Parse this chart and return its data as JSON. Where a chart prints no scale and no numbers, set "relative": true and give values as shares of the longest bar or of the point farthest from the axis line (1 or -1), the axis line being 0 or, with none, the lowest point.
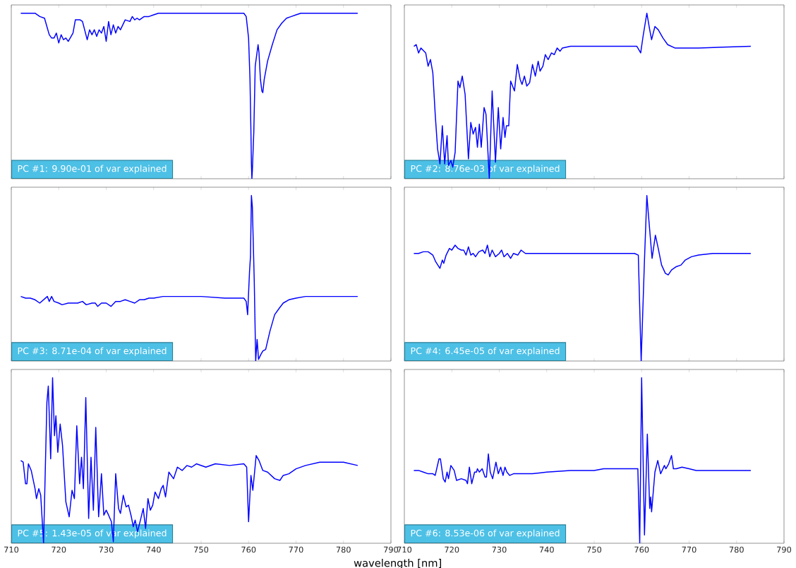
{
  "chart_data": [
    {
      "type": "line",
      "relative": true,
      "xlim": [
        710,
        790
      ],
      "xticks": [
        710,
        720,
        730,
        740,
        750,
        760,
        770,
        780,
        790
      ],
      "tick_labels": false,
      "annotations": [
        "PC #1: 9.90e-01 of var explained"
      ],
      "series": [
        {
          "color": "#0000ff",
          "x": [
            712,
            713,
            714,
            715,
            715.5,
            716,
            717,
            717.5,
            718,
            718.5,
            719,
            719.5,
            720,
            720.5,
            721,
            721.5,
            722,
            723,
            723.5,
            724,
            724.5,
            725,
            726,
            726.5,
            727,
            727.5,
            728,
            728.5,
            729,
            729.5,
            730,
            730.5,
            731,
            731.5,
            732,
            732.5,
            733,
            734,
            735,
            735.5,
            736,
            736.5,
            737,
            738,
            739,
            740,
            741,
            742,
            744,
            750,
            755,
            759,
            759.5,
            760,
            760.3,
            760.5,
            760.6,
            760.7,
            760.8,
            761.1,
            761.4,
            762,
            762.2,
            762.5,
            762.8,
            763,
            763.3,
            764,
            765,
            766,
            767,
            768,
            769,
            770,
            771,
            772,
            775,
            783
          ],
          "values": [
            1.0,
            1.0,
            1.0,
            1.0,
            0.99,
            0.98,
            0.97,
            0.92,
            0.87,
            0.85,
            0.85,
            0.88,
            0.82,
            0.87,
            0.84,
            0.85,
            0.83,
            0.88,
            0.96,
            0.96,
            0.96,
            0.95,
            0.84,
            0.9,
            0.87,
            0.9,
            0.86,
            0.9,
            0.88,
            0.92,
            0.83,
            0.95,
            0.87,
            0.93,
            0.88,
            0.92,
            0.9,
            0.96,
            0.95,
            0.98,
            0.96,
            0.97,
            0.96,
            0.98,
            0.98,
            0.99,
            1.0,
            1.0,
            1.0,
            1.0,
            1.0,
            1.0,
            0.98,
            0.85,
            0.6,
            0.28,
            0.09,
            0.0,
            0.05,
            0.28,
            0.68,
            0.81,
            0.76,
            0.6,
            0.53,
            0.52,
            0.6,
            0.71,
            0.81,
            0.9,
            0.94,
            0.97,
            0.98,
            0.99,
            1.0,
            1.0,
            1.0,
            1.0
          ]
        }
      ]
    },
    {
      "type": "line",
      "relative": true,
      "xlim": [
        710,
        790
      ],
      "xticks": [
        710,
        720,
        730,
        740,
        750,
        760,
        770,
        780,
        790
      ],
      "tick_labels": false,
      "annotations": [
        "PC #2: 8.76e-03 of var explained"
      ],
      "series": [
        {
          "color": "#0000ff",
          "x": [
            712,
            712.5,
            713,
            713.5,
            714.5,
            715,
            715.5,
            716,
            716.5,
            717,
            717.5,
            718,
            718.5,
            719,
            719.3,
            719.8,
            720.2,
            720.7,
            721.3,
            721.7,
            722.2,
            722.8,
            723.5,
            724,
            724.5,
            725,
            725.4,
            725.8,
            726.2,
            726.8,
            727.2,
            727.9,
            728.5,
            729.2,
            729.8,
            730.3,
            730.8,
            731.2,
            731.5,
            732,
            732.4,
            732.8,
            733.2,
            733.8,
            734.4,
            734.8,
            735.3,
            735.8,
            736.4,
            737,
            737.6,
            738.2,
            738.6,
            739.2,
            739.7,
            740.3,
            741,
            741.6,
            742.2,
            742.8,
            743.3,
            745,
            750,
            759,
            759.8,
            760.3,
            761.1,
            761.7,
            762.1,
            762.8,
            763.5,
            764.5,
            765.5,
            767,
            769,
            772,
            783
          ],
          "values": [
            0.8,
            0.81,
            0.76,
            0.79,
            0.76,
            0.68,
            0.72,
            0.64,
            0.39,
            0.18,
            0.09,
            0.32,
            0.09,
            0.26,
            0.08,
            0.11,
            0.07,
            0.16,
            0.59,
            0.55,
            0.62,
            0.51,
            0.12,
            0.34,
            0.27,
            0.31,
            0.19,
            0.33,
            0.19,
            0.43,
            0.39,
            0.0,
            0.53,
            0.1,
            0.43,
            0.18,
            0.37,
            0.25,
            0.32,
            0.32,
            0.59,
            0.56,
            0.53,
            0.69,
            0.6,
            0.57,
            0.62,
            0.56,
            0.58,
            0.69,
            0.62,
            0.71,
            0.65,
            0.68,
            0.75,
            0.72,
            0.76,
            0.75,
            0.79,
            0.77,
            0.79,
            0.8,
            0.8,
            0.8,
            0.76,
            0.86,
            1.0,
            0.9,
            0.84,
            0.92,
            0.9,
            0.85,
            0.81,
            0.79,
            0.79,
            0.79,
            0.8
          ]
        }
      ]
    },
    {
      "type": "line",
      "relative": true,
      "xlim": [
        710,
        790
      ],
      "xticks": [
        710,
        720,
        730,
        740,
        750,
        760,
        770,
        780,
        790
      ],
      "tick_labels": false,
      "annotations": [
        "PC #3: 8.71e-04 of var explained"
      ],
      "series": [
        {
          "color": "#0000ff",
          "x": [
            712,
            713,
            713.5,
            714,
            715,
            716,
            717.6,
            718,
            718.5,
            719,
            720,
            720.7,
            722,
            723,
            724,
            725,
            725.8,
            727,
            727.7,
            728.2,
            729,
            730,
            731,
            732,
            733,
            734,
            735,
            736,
            737,
            738,
            739,
            740,
            742,
            745,
            750,
            755,
            758,
            759,
            759.5,
            759.8,
            760.2,
            760.4,
            760.6,
            760.8,
            761.2,
            761.5,
            761.8,
            762.1,
            762.6,
            763,
            763.6,
            764.5,
            765.5,
            766.5,
            767.3,
            768.5,
            770,
            772,
            783
          ],
          "values": [
            0.39,
            0.38,
            0.38,
            0.38,
            0.37,
            0.35,
            0.39,
            0.36,
            0.39,
            0.36,
            0.35,
            0.34,
            0.35,
            0.35,
            0.35,
            0.36,
            0.34,
            0.35,
            0.35,
            0.33,
            0.35,
            0.35,
            0.33,
            0.36,
            0.36,
            0.37,
            0.36,
            0.35,
            0.37,
            0.37,
            0.38,
            0.38,
            0.39,
            0.39,
            0.39,
            0.38,
            0.38,
            0.38,
            0.36,
            0.28,
            0.54,
            0.63,
            1.0,
            0.93,
            0.48,
            0.0,
            0.13,
            0.01,
            0.04,
            0.06,
            0.07,
            0.18,
            0.28,
            0.32,
            0.35,
            0.37,
            0.38,
            0.39,
            0.39
          ]
        }
      ]
    },
    {
      "type": "line",
      "relative": true,
      "xlim": [
        710,
        790
      ],
      "xticks": [
        710,
        720,
        730,
        740,
        750,
        760,
        770,
        780,
        790
      ],
      "tick_labels": false,
      "annotations": [
        "PC #4: 6.45e-05 of var explained"
      ],
      "series": [
        {
          "color": "#0000ff",
          "x": [
            712,
            713,
            714,
            715,
            715.5,
            716,
            716.6,
            717.5,
            718,
            718.3,
            718.8,
            719.5,
            720,
            720.7,
            721.3,
            722,
            722.5,
            723,
            723.5,
            724,
            724.5,
            725,
            725.7,
            726.5,
            727,
            727.5,
            728,
            728.5,
            729.2,
            730,
            730.5,
            731,
            731.7,
            732.4,
            733,
            733.9,
            734.6,
            735.5,
            737,
            740,
            745,
            750,
            755,
            758.5,
            759.3,
            759.9,
            760.6,
            761.1,
            761.5,
            762.2,
            762.9,
            763.5,
            764.2,
            765,
            765.6,
            766.3,
            767.3,
            768.3,
            769.2,
            770.5,
            772,
            775,
            780,
            783
          ],
          "values": [
            0.65,
            0.65,
            0.66,
            0.66,
            0.65,
            0.64,
            0.6,
            0.56,
            0.61,
            0.59,
            0.64,
            0.68,
            0.67,
            0.7,
            0.68,
            0.67,
            0.67,
            0.64,
            0.69,
            0.64,
            0.65,
            0.63,
            0.66,
            0.67,
            0.65,
            0.7,
            0.63,
            0.67,
            0.63,
            0.65,
            0.67,
            0.63,
            0.65,
            0.62,
            0.65,
            0.64,
            0.67,
            0.65,
            0.65,
            0.65,
            0.65,
            0.65,
            0.65,
            0.65,
            0.64,
            0.0,
            0.61,
            1.0,
            0.86,
            0.62,
            0.76,
            0.68,
            0.58,
            0.53,
            0.52,
            0.55,
            0.57,
            0.58,
            0.61,
            0.63,
            0.64,
            0.65,
            0.65,
            0.65
          ]
        }
      ]
    },
    {
      "type": "line",
      "relative": true,
      "xlim": [
        710,
        790
      ],
      "xticks": [
        710,
        720,
        730,
        740,
        750,
        760,
        770,
        780,
        790
      ],
      "tick_labels": "x",
      "xlabel": "wavelength [nm]",
      "annotations": [
        "PC #5: 1.43e-05 of var explained"
      ],
      "series": [
        {
          "color": "#0000ff",
          "x": [
            712,
            712.5,
            713,
            713.3,
            713.6,
            714.2,
            715,
            715.3,
            715.8,
            716.2,
            716.8,
            717.5,
            717.8,
            718.3,
            718.7,
            719.1,
            719.4,
            719.8,
            720.3,
            720.8,
            721.5,
            722.2,
            722.8,
            723.3,
            723.8,
            724.4,
            724.8,
            725.2,
            725.7,
            726.3,
            726.8,
            727.3,
            727.8,
            728.4,
            729,
            729.5,
            730,
            730.5,
            731.1,
            731.5,
            732,
            732.6,
            733,
            733.6,
            734.2,
            734.7,
            735.3,
            735.7,
            736.1,
            736.6,
            737.3,
            737.8,
            738.3,
            738.8,
            739.3,
            739.8,
            740.3,
            741,
            741.6,
            742,
            742.5,
            743.2,
            744.2,
            745,
            746,
            747,
            748,
            749,
            751,
            753,
            756,
            759,
            759.6,
            760,
            760.5,
            760.9,
            761.6,
            762.2,
            763,
            764,
            765.5,
            766.6,
            767.3,
            768.5,
            770,
            772,
            775,
            778,
            780,
            783
          ],
          "values": [
            0.5,
            0.49,
            0.36,
            0.36,
            0.48,
            0.44,
            0.33,
            0.27,
            0.33,
            0.29,
            0.0,
            0.85,
            0.95,
            0.51,
            1.0,
            0.65,
            0.77,
            0.55,
            0.72,
            0.59,
            0.25,
            0.16,
            0.32,
            0.27,
            0.71,
            0.36,
            0.52,
            0.33,
            0.88,
            0.15,
            0.52,
            0.2,
            0.7,
            0.16,
            0.42,
            0.17,
            0.2,
            0.17,
            0.13,
            0.01,
            0.42,
            0.21,
            0.18,
            0.29,
            0.22,
            0.23,
            0.16,
            0.1,
            0.14,
            0.07,
            0.15,
            0.21,
            0.09,
            0.27,
            0.2,
            0.23,
            0.31,
            0.27,
            0.33,
            0.35,
            0.28,
            0.43,
            0.39,
            0.46,
            0.44,
            0.47,
            0.46,
            0.48,
            0.46,
            0.48,
            0.47,
            0.48,
            0.46,
            0.13,
            0.41,
            0.32,
            0.53,
            0.5,
            0.44,
            0.43,
            0.39,
            0.38,
            0.41,
            0.42,
            0.45,
            0.47,
            0.49,
            0.49,
            0.49,
            0.47
          ]
        }
      ]
    },
    {
      "type": "line",
      "relative": true,
      "xlim": [
        710,
        790
      ],
      "xticks": [
        710,
        720,
        730,
        740,
        750,
        760,
        770,
        780,
        790
      ],
      "tick_labels": "x",
      "annotations": [
        "PC #6: 8.53e-06 of var explained"
      ],
      "series": [
        {
          "color": "#0000ff",
          "x": [
            712,
            713,
            714,
            715,
            716,
            716.5,
            717.3,
            717.6,
            718.2,
            718.6,
            719,
            719.3,
            719.8,
            720.5,
            721,
            722,
            723,
            723.3,
            723.7,
            724.2,
            724.8,
            725.2,
            725.4,
            725.8,
            726.4,
            727,
            727.3,
            727.7,
            728.1,
            728.6,
            729.3,
            729.8,
            730.3,
            730.8,
            731.2,
            731.6,
            732.2,
            733,
            735,
            737,
            740,
            745,
            750,
            752,
            755,
            758,
            759.2,
            759.6,
            760,
            760.6,
            761.2,
            761.7,
            761.9,
            762.1,
            762.8,
            763.4,
            764,
            764.8,
            765.1,
            765.7,
            766.3,
            766.7,
            767.3,
            768.5,
            770,
            771.5,
            773,
            774.5,
            776,
            780,
            783
          ],
          "values": [
            0.44,
            0.44,
            0.43,
            0.42,
            0.42,
            0.41,
            0.51,
            0.51,
            0.39,
            0.37,
            0.43,
            0.39,
            0.47,
            0.44,
            0.38,
            0.39,
            0.38,
            0.36,
            0.46,
            0.36,
            0.43,
            0.43,
            0.45,
            0.43,
            0.45,
            0.4,
            0.4,
            0.54,
            0.43,
            0.39,
            0.49,
            0.42,
            0.46,
            0.41,
            0.46,
            0.43,
            0.41,
            0.42,
            0.42,
            0.42,
            0.43,
            0.44,
            0.44,
            0.45,
            0.45,
            0.45,
            0.45,
            0.0,
            1.0,
            0.05,
            0.66,
            0.21,
            0.28,
            0.19,
            0.43,
            0.5,
            0.42,
            0.47,
            0.45,
            0.48,
            0.53,
            0.45,
            0.45,
            0.46,
            0.45,
            0.44,
            0.44,
            0.44,
            0.44,
            0.44,
            0.44
          ]
        }
      ]
    }
  ]
}
